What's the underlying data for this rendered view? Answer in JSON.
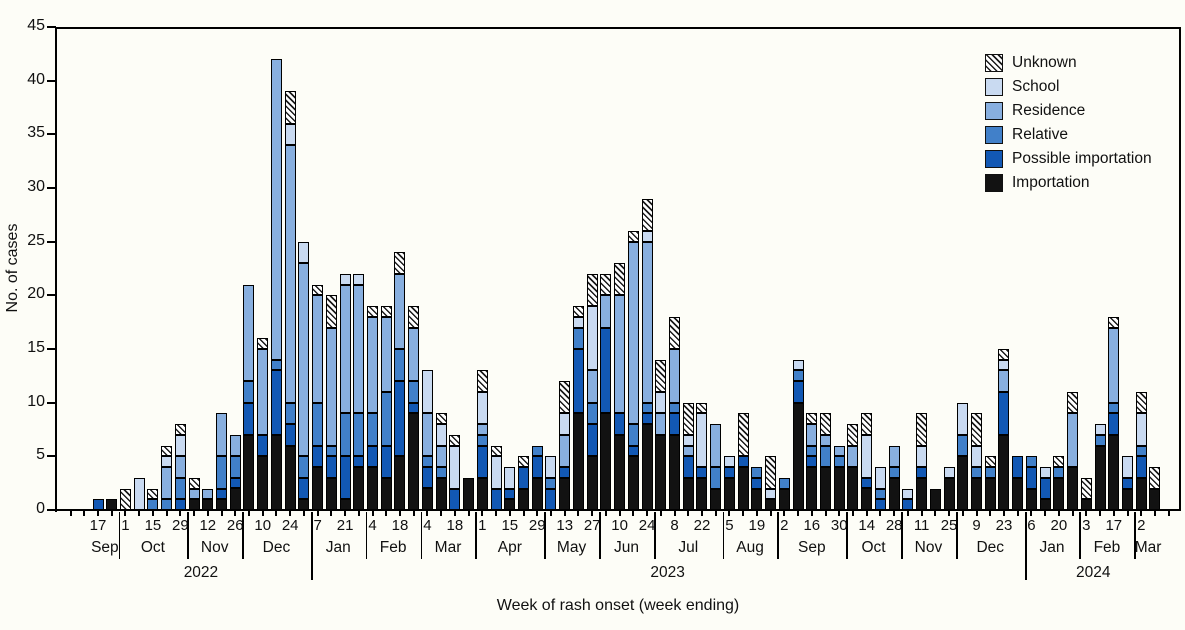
{
  "chart_data": {
    "type": "bar",
    "stacked": true,
    "title": "",
    "ylabel": "No. of cases",
    "xlabel": "Week of rash onset (week ending)",
    "ylim": [
      0,
      45
    ],
    "yticks": [
      0,
      5,
      10,
      15,
      20,
      25,
      30,
      35,
      40,
      45
    ],
    "grid": false,
    "legend_position": "top-right",
    "legend": [
      {
        "key": "unknown",
        "label": "Unknown",
        "fill": "hatch",
        "color": "#1c1c1c"
      },
      {
        "key": "school",
        "label": "School",
        "color": "#c9daf1"
      },
      {
        "key": "residence",
        "label": "Residence",
        "color": "#88afdf"
      },
      {
        "key": "relative",
        "label": "Relative",
        "color": "#4180c9"
      },
      {
        "key": "possible_importation",
        "label": "Possible importation",
        "color": "#1258b4"
      },
      {
        "key": "importation",
        "label": "Importation",
        "color": "#121212"
      }
    ],
    "value_order_bottom_to_top": [
      "importation",
      "possible_importation",
      "relative",
      "residence",
      "school",
      "unknown"
    ],
    "years": [
      {
        "label": "2022",
        "month_start": 0,
        "month_end": 3
      },
      {
        "label": "2023",
        "month_start": 4,
        "month_end": 15
      },
      {
        "label": "2024",
        "month_start": 16,
        "month_end": 18
      }
    ],
    "months": [
      {
        "name": "Sep",
        "weeks": [
          {
            "t": "17",
            "v": [
              0,
              1,
              0,
              0,
              0,
              0
            ]
          },
          {
            "t": "",
            "v": [
              1,
              0,
              0,
              0,
              0,
              0
            ]
          }
        ]
      },
      {
        "name": "Oct",
        "weeks": [
          {
            "t": "1",
            "v": [
              0,
              0,
              0,
              0,
              0,
              2
            ]
          },
          {
            "t": "",
            "v": [
              0,
              0,
              0,
              0,
              3,
              0
            ]
          },
          {
            "t": "15",
            "v": [
              0,
              0,
              1,
              0,
              0,
              1
            ]
          },
          {
            "t": "",
            "v": [
              0,
              0,
              1,
              3,
              1,
              1
            ]
          },
          {
            "t": "29",
            "v": [
              0,
              1,
              2,
              2,
              2,
              1
            ]
          }
        ]
      },
      {
        "name": "Nov",
        "weeks": [
          {
            "t": "",
            "v": [
              1,
              0,
              0,
              1,
              0,
              1
            ]
          },
          {
            "t": "12",
            "v": [
              1,
              0,
              0,
              1,
              0,
              0
            ]
          },
          {
            "t": "",
            "v": [
              1,
              1,
              3,
              4,
              0,
              0
            ]
          },
          {
            "t": "26",
            "v": [
              2,
              1,
              2,
              2,
              0,
              0
            ]
          }
        ]
      },
      {
        "name": "Dec",
        "weeks": [
          {
            "t": "",
            "v": [
              7,
              3,
              2,
              9,
              0,
              0
            ]
          },
          {
            "t": "10",
            "v": [
              5,
              2,
              0,
              8,
              0,
              1
            ]
          },
          {
            "t": "",
            "v": [
              7,
              6,
              1,
              28,
              0,
              0
            ]
          },
          {
            "t": "24",
            "v": [
              6,
              2,
              2,
              24,
              2,
              3
            ]
          },
          {
            "t": "",
            "v": [
              1,
              2,
              2,
              18,
              2,
              0
            ]
          }
        ]
      },
      {
        "name": "Jan",
        "weeks": [
          {
            "t": "7",
            "v": [
              4,
              2,
              4,
              10,
              0,
              1
            ]
          },
          {
            "t": "",
            "v": [
              3,
              2,
              1,
              11,
              0,
              3
            ]
          },
          {
            "t": "21",
            "v": [
              1,
              4,
              4,
              12,
              1,
              0
            ]
          },
          {
            "t": "",
            "v": [
              4,
              1,
              4,
              12,
              1,
              0
            ]
          }
        ]
      },
      {
        "name": "Feb",
        "weeks": [
          {
            "t": "4",
            "v": [
              4,
              2,
              3,
              9,
              0,
              1
            ]
          },
          {
            "t": "",
            "v": [
              3,
              3,
              5,
              7,
              0,
              1
            ]
          },
          {
            "t": "18",
            "v": [
              5,
              7,
              3,
              7,
              0,
              2
            ]
          },
          {
            "t": "",
            "v": [
              9,
              1,
              2,
              5,
              0,
              2
            ]
          }
        ]
      },
      {
        "name": "Mar",
        "weeks": [
          {
            "t": "4",
            "v": [
              2,
              2,
              1,
              4,
              4,
              0
            ]
          },
          {
            "t": "",
            "v": [
              3,
              0,
              1,
              2,
              2,
              1
            ]
          },
          {
            "t": "18",
            "v": [
              0,
              2,
              0,
              0,
              4,
              1
            ]
          },
          {
            "t": "",
            "v": [
              3,
              0,
              0,
              0,
              0,
              0
            ]
          }
        ]
      },
      {
        "name": "Apr",
        "weeks": [
          {
            "t": "1",
            "v": [
              3,
              3,
              1,
              1,
              3,
              2
            ]
          },
          {
            "t": "",
            "v": [
              0,
              2,
              0,
              0,
              3,
              1
            ]
          },
          {
            "t": "15",
            "v": [
              1,
              1,
              0,
              0,
              2,
              0
            ]
          },
          {
            "t": "",
            "v": [
              2,
              2,
              0,
              0,
              0,
              1
            ]
          },
          {
            "t": "29",
            "v": [
              3,
              2,
              1,
              0,
              0,
              0
            ]
          }
        ]
      },
      {
        "name": "May",
        "weeks": [
          {
            "t": "",
            "v": [
              0,
              2,
              1,
              0,
              2,
              0
            ]
          },
          {
            "t": "13",
            "v": [
              3,
              1,
              0,
              3,
              2,
              3
            ]
          },
          {
            "t": "",
            "v": [
              9,
              6,
              2,
              0,
              1,
              1
            ]
          },
          {
            "t": "27",
            "v": [
              5,
              3,
              2,
              3,
              6,
              3
            ]
          }
        ]
      },
      {
        "name": "Jun",
        "weeks": [
          {
            "t": "",
            "v": [
              9,
              8,
              0,
              3,
              0,
              2
            ]
          },
          {
            "t": "10",
            "v": [
              7,
              2,
              0,
              11,
              0,
              3
            ]
          },
          {
            "t": "",
            "v": [
              5,
              1,
              2,
              17,
              0,
              1
            ]
          },
          {
            "t": "24",
            "v": [
              8,
              1,
              1,
              15,
              1,
              3
            ]
          }
        ]
      },
      {
        "name": "Jul",
        "weeks": [
          {
            "t": "",
            "v": [
              7,
              0,
              0,
              2,
              2,
              3
            ]
          },
          {
            "t": "8",
            "v": [
              7,
              2,
              1,
              5,
              0,
              3
            ]
          },
          {
            "t": "",
            "v": [
              3,
              2,
              0,
              1,
              1,
              3
            ]
          },
          {
            "t": "22",
            "v": [
              3,
              1,
              0,
              0,
              5,
              1
            ]
          },
          {
            "t": "",
            "v": [
              2,
              0,
              2,
              4,
              0,
              0
            ]
          }
        ]
      },
      {
        "name": "Aug",
        "weeks": [
          {
            "t": "5",
            "v": [
              3,
              1,
              0,
              0,
              1,
              0
            ]
          },
          {
            "t": "",
            "v": [
              4,
              1,
              0,
              0,
              0,
              4
            ]
          },
          {
            "t": "19",
            "v": [
              2,
              1,
              1,
              0,
              0,
              0
            ]
          },
          {
            "t": "",
            "v": [
              1,
              0,
              0,
              0,
              1,
              3
            ]
          }
        ]
      },
      {
        "name": "Sep",
        "weeks": [
          {
            "t": "2",
            "v": [
              2,
              0,
              1,
              0,
              0,
              0
            ]
          },
          {
            "t": "",
            "v": [
              10,
              2,
              1,
              0,
              1,
              0
            ]
          },
          {
            "t": "16",
            "v": [
              4,
              1,
              1,
              2,
              0,
              1
            ]
          },
          {
            "t": "",
            "v": [
              4,
              0,
              2,
              1,
              0,
              2
            ]
          },
          {
            "t": "30",
            "v": [
              4,
              0,
              1,
              1,
              0,
              0
            ]
          }
        ]
      },
      {
        "name": "Oct",
        "weeks": [
          {
            "t": "",
            "v": [
              4,
              0,
              0,
              2,
              0,
              2
            ]
          },
          {
            "t": "14",
            "v": [
              2,
              1,
              0,
              0,
              4,
              2
            ]
          },
          {
            "t": "",
            "v": [
              0,
              1,
              1,
              0,
              2,
              0
            ]
          },
          {
            "t": "28",
            "v": [
              3,
              0,
              1,
              2,
              0,
              0
            ]
          }
        ]
      },
      {
        "name": "Nov",
        "weeks": [
          {
            "t": "",
            "v": [
              0,
              1,
              0,
              0,
              1,
              0
            ]
          },
          {
            "t": "11",
            "v": [
              3,
              1,
              0,
              0,
              2,
              3
            ]
          },
          {
            "t": "",
            "v": [
              2,
              0,
              0,
              0,
              0,
              0
            ]
          },
          {
            "t": "25",
            "v": [
              3,
              0,
              0,
              0,
              1,
              0
            ]
          }
        ]
      },
      {
        "name": "Dec",
        "weeks": [
          {
            "t": "",
            "v": [
              5,
              0,
              2,
              0,
              3,
              0
            ]
          },
          {
            "t": "9",
            "v": [
              3,
              0,
              1,
              0,
              2,
              3
            ]
          },
          {
            "t": "",
            "v": [
              3,
              0,
              1,
              0,
              0,
              1
            ]
          },
          {
            "t": "23",
            "v": [
              7,
              4,
              0,
              2,
              1,
              1
            ]
          },
          {
            "t": "",
            "v": [
              3,
              2,
              0,
              0,
              0,
              0
            ]
          }
        ]
      },
      {
        "name": "Jan",
        "weeks": [
          {
            "t": "6",
            "v": [
              2,
              2,
              1,
              0,
              0,
              0
            ]
          },
          {
            "t": "",
            "v": [
              1,
              2,
              0,
              0,
              1,
              0
            ]
          },
          {
            "t": "20",
            "v": [
              3,
              0,
              1,
              0,
              0,
              1
            ]
          },
          {
            "t": "",
            "v": [
              4,
              0,
              0,
              5,
              0,
              2
            ]
          }
        ]
      },
      {
        "name": "Feb",
        "weeks": [
          {
            "t": "3",
            "v": [
              1,
              0,
              0,
              0,
              0,
              2
            ]
          },
          {
            "t": "",
            "v": [
              6,
              0,
              1,
              0,
              1,
              0
            ]
          },
          {
            "t": "17",
            "v": [
              7,
              2,
              1,
              7,
              0,
              1
            ]
          },
          {
            "t": "",
            "v": [
              2,
              1,
              0,
              0,
              2,
              0
            ]
          }
        ]
      },
      {
        "name": "Mar",
        "weeks": [
          {
            "t": "2",
            "v": [
              3,
              2,
              1,
              0,
              3,
              2
            ]
          },
          {
            "t": "",
            "v": [
              2,
              0,
              0,
              0,
              0,
              2
            ]
          }
        ]
      }
    ]
  }
}
